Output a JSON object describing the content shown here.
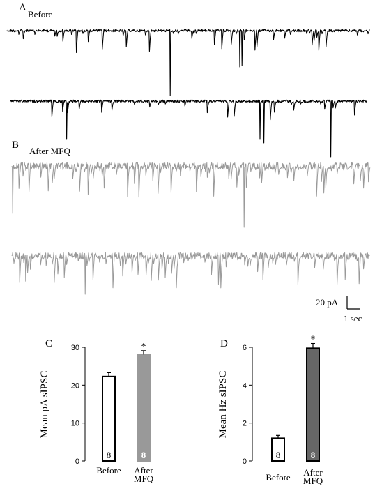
{
  "panels": {
    "a": {
      "letter": "A",
      "title": "Before"
    },
    "b": {
      "letter": "B",
      "title": "After MFQ"
    },
    "c": {
      "letter": "C"
    },
    "d": {
      "letter": "D"
    }
  },
  "scale_bar": {
    "current": "20 pA",
    "time": "1 sec"
  },
  "colors": {
    "before_trace": "#000000",
    "after_trace": "#999999",
    "bar_after_c": "#999999",
    "bar_after_d": "#666666"
  },
  "chart_data": [
    {
      "type": "bar",
      "panel": "C",
      "categories": [
        "Before",
        "After MFQ"
      ],
      "category_lines": [
        [
          "Before"
        ],
        [
          "After",
          "MFQ"
        ]
      ],
      "values": [
        22.3,
        28.1
      ],
      "errors": [
        1.0,
        1.0
      ],
      "n_labels": [
        "8",
        "8"
      ],
      "significance": [
        "",
        "*"
      ],
      "ylabel": "Mean pA sIPSC",
      "ylim": [
        0,
        30
      ],
      "yticks": [
        0,
        10,
        20,
        30
      ],
      "grid": false
    },
    {
      "type": "bar",
      "panel": "D",
      "categories": [
        "Before",
        "After MFQ"
      ],
      "category_lines": [
        [
          "Before"
        ],
        [
          "After",
          "MFQ"
        ]
      ],
      "values": [
        1.2,
        5.95
      ],
      "errors": [
        0.15,
        0.25
      ],
      "n_labels": [
        "8",
        "8"
      ],
      "significance": [
        "",
        "*"
      ],
      "ylabel": "Mean Hz sIPSC",
      "ylim": [
        0,
        6
      ],
      "yticks": [
        0,
        2,
        4,
        6
      ],
      "grid": false
    }
  ]
}
